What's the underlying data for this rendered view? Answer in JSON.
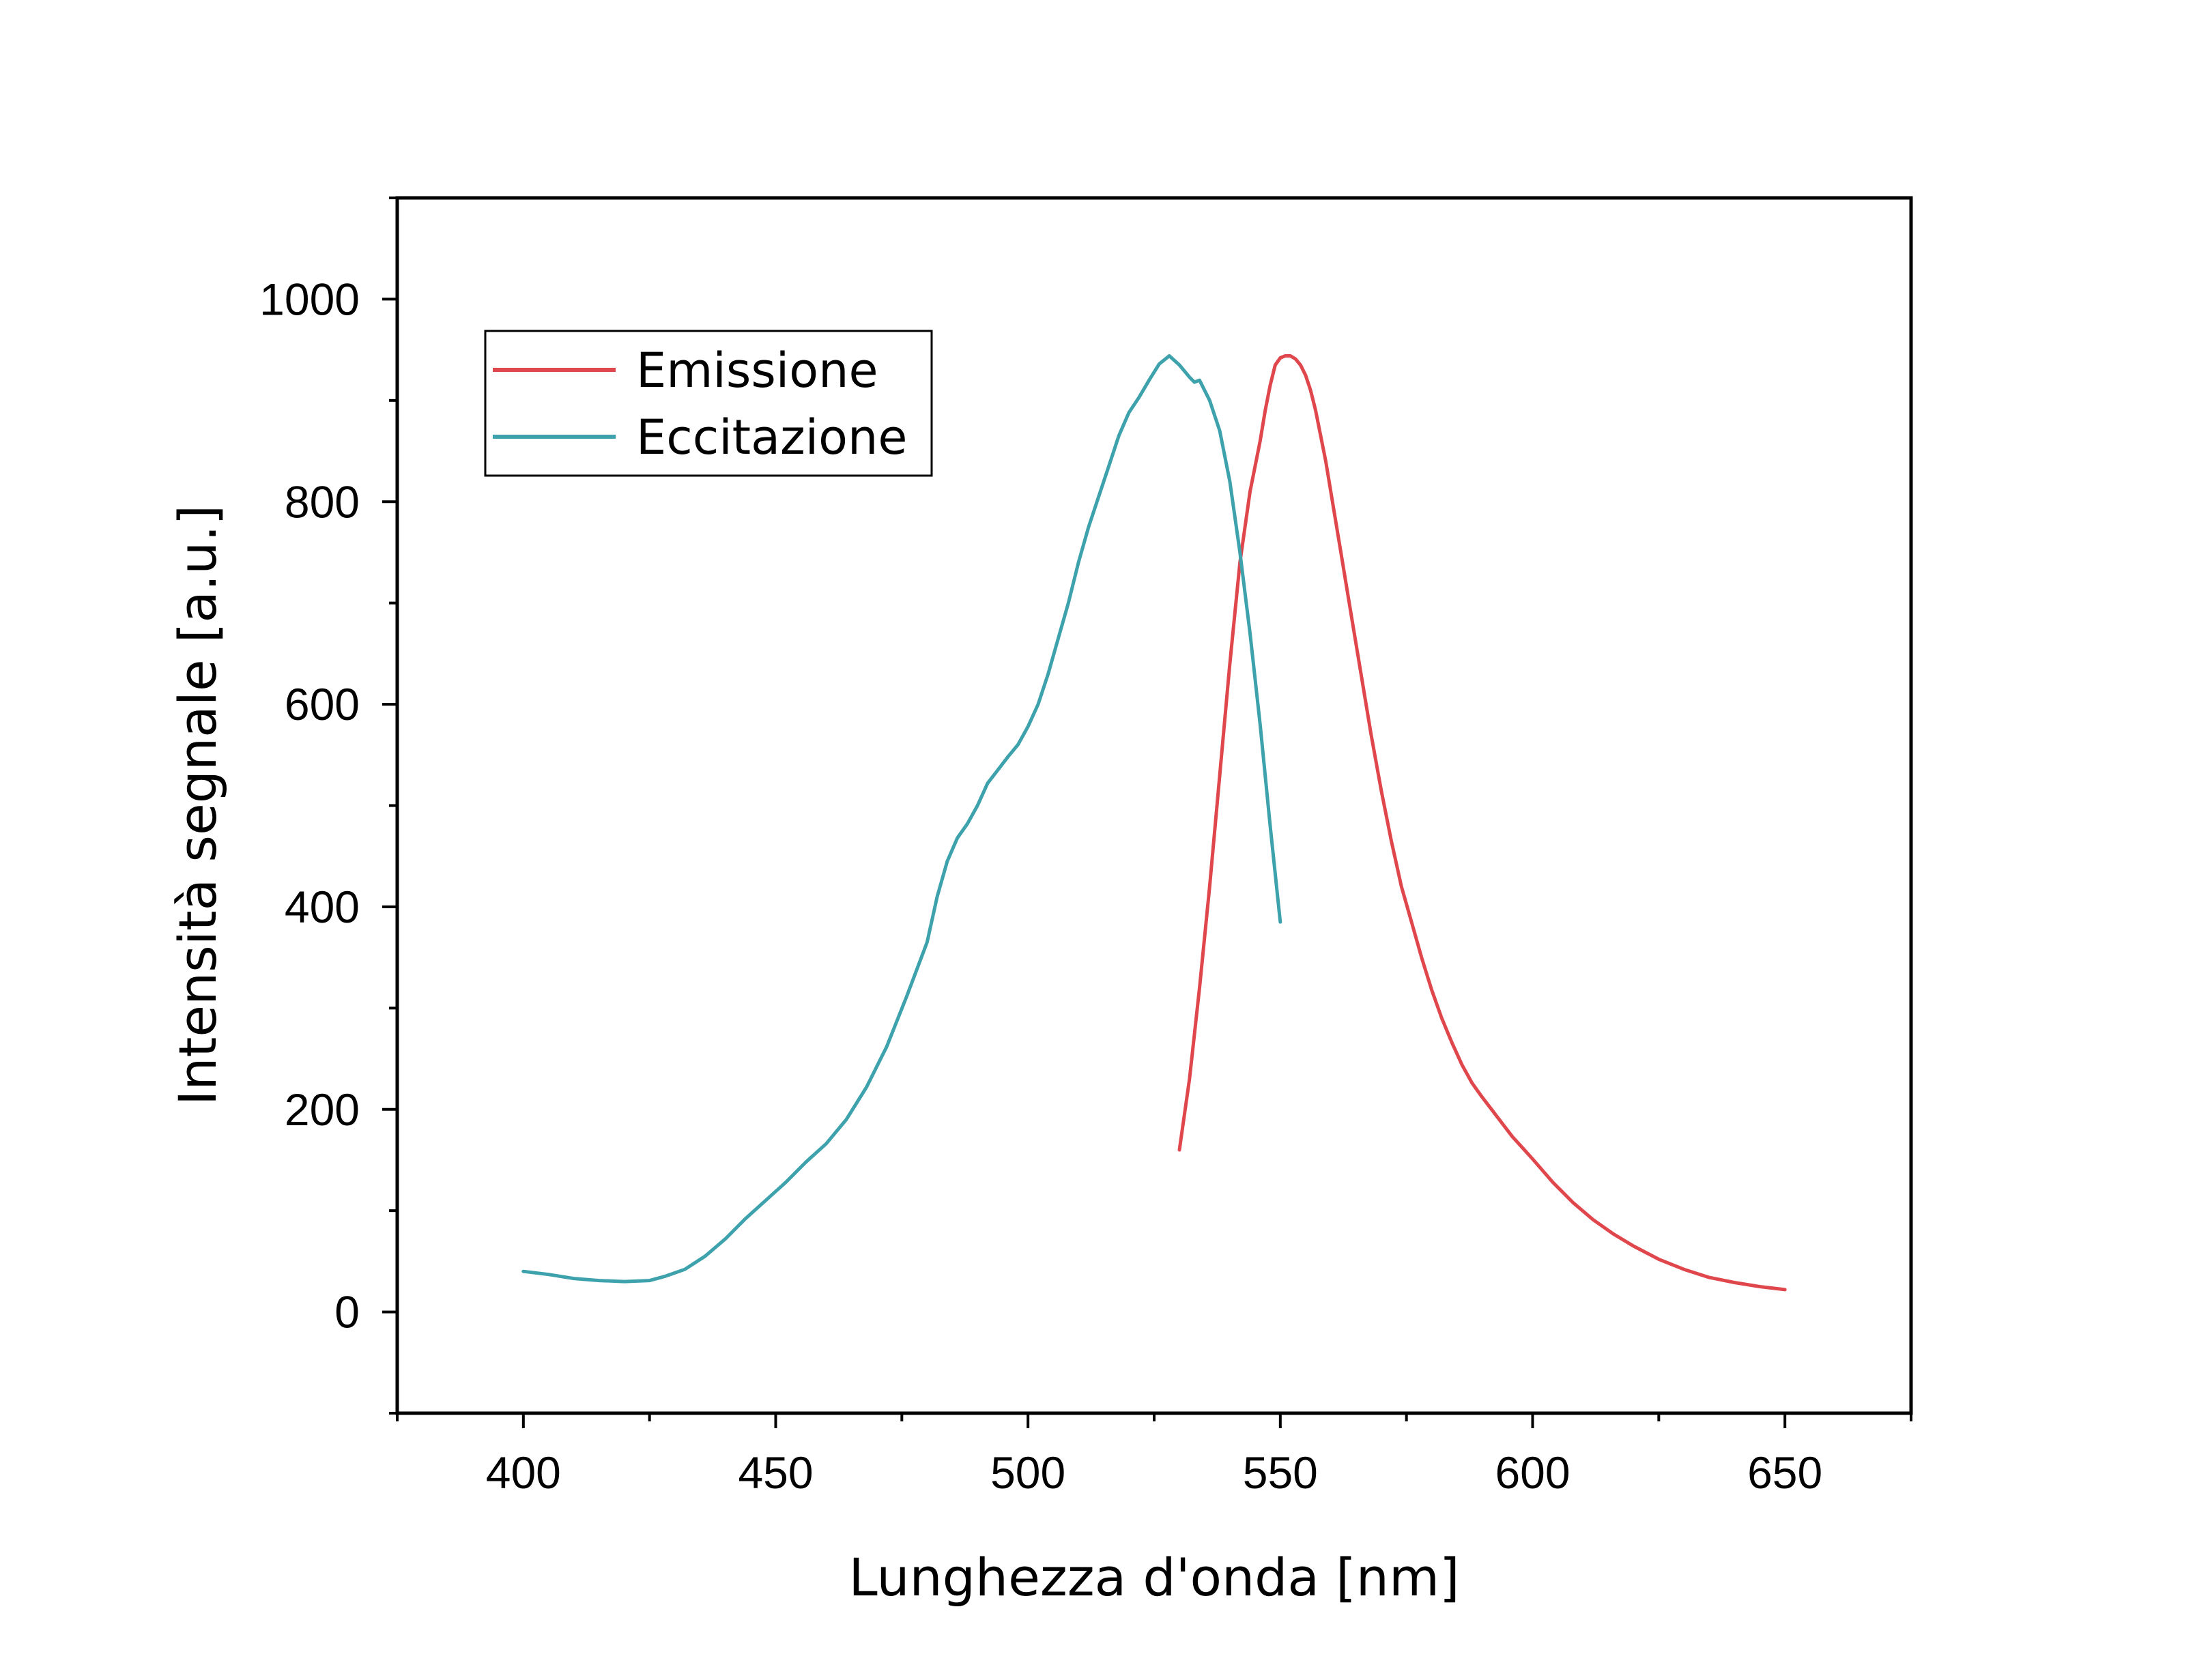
{
  "chart_data": {
    "type": "line",
    "title": "",
    "xlabel": "Lunghezza d'onda [nm]",
    "ylabel": "Intensità segnale [a.u.]",
    "xlim": [
      375,
      675
    ],
    "ylim": [
      -100,
      1100
    ],
    "xticks": [
      400,
      450,
      500,
      550,
      600,
      650
    ],
    "yticks": [
      0,
      200,
      400,
      600,
      800,
      1000
    ],
    "grid": false,
    "legend_position": "top-left",
    "series": [
      {
        "name": "Emissione",
        "color": "#e0474c",
        "x": [
          530,
          532,
          534,
          536,
          538,
          540,
          542,
          544,
          546,
          547,
          548,
          549,
          550,
          551,
          552,
          553,
          554,
          555,
          556,
          557,
          558,
          559,
          560,
          562,
          564,
          566,
          568,
          570,
          572,
          574,
          576,
          578,
          580,
          582,
          584,
          586,
          588,
          590,
          592,
          594,
          596,
          598,
          600,
          604,
          608,
          612,
          616,
          620,
          625,
          630,
          635,
          640,
          645,
          650
        ],
        "y": [
          160,
          230,
          320,
          420,
          530,
          640,
          740,
          810,
          860,
          890,
          915,
          935,
          942,
          944,
          944,
          941,
          935,
          925,
          910,
          890,
          865,
          840,
          810,
          750,
          690,
          630,
          570,
          515,
          465,
          420,
          385,
          350,
          318,
          290,
          266,
          244,
          226,
          212,
          199,
          186,
          173,
          162,
          151,
          128,
          108,
          91,
          77,
          65,
          52,
          42,
          34,
          29,
          25,
          22
        ]
      },
      {
        "name": "Eccitazione",
        "color": "#3ea2ad",
        "x": [
          400,
          405,
          410,
          415,
          420,
          425,
          428,
          432,
          436,
          440,
          444,
          448,
          452,
          456,
          460,
          464,
          468,
          472,
          476,
          480,
          482,
          484,
          486,
          488,
          490,
          492,
          494,
          496,
          498,
          500,
          502,
          504,
          506,
          508,
          510,
          512,
          514,
          516,
          518,
          520,
          522,
          524,
          526,
          528,
          530,
          532,
          533,
          534,
          536,
          538,
          540,
          542,
          544,
          546,
          548,
          550
        ],
        "y": [
          40,
          37,
          33,
          31,
          30,
          31,
          35,
          42,
          55,
          72,
          92,
          110,
          128,
          148,
          166,
          190,
          222,
          262,
          312,
          365,
          410,
          445,
          468,
          482,
          500,
          522,
          535,
          548,
          560,
          578,
          600,
          630,
          665,
          700,
          740,
          775,
          805,
          835,
          865,
          888,
          903,
          920,
          936,
          944,
          935,
          923,
          918,
          920,
          900,
          870,
          820,
          750,
          670,
          580,
          480,
          385
        ]
      }
    ]
  }
}
